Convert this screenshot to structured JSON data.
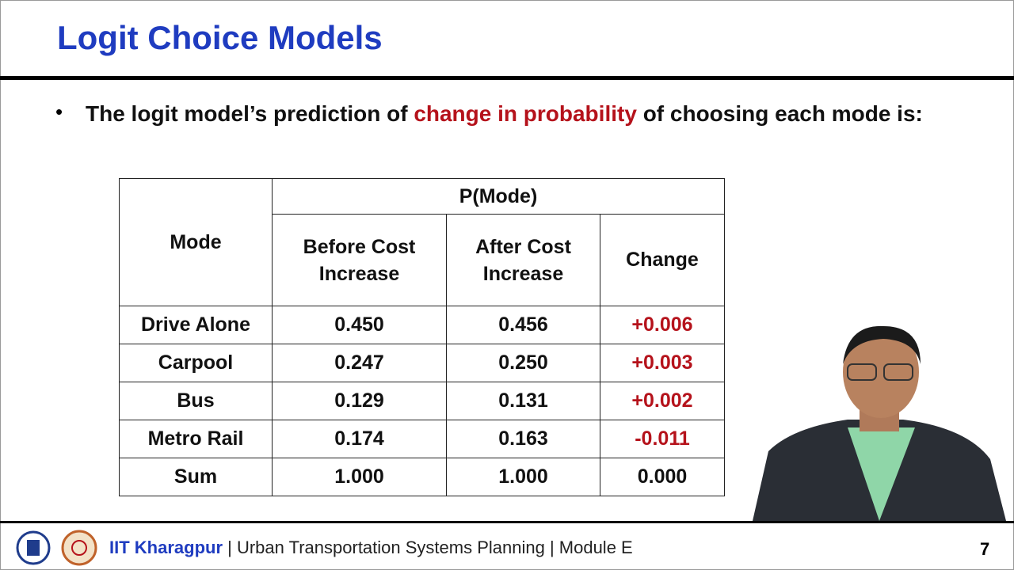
{
  "header": {
    "title": "Logit Choice Models"
  },
  "bullet": {
    "before": "The logit model’s prediction of",
    "highlight": "change in probability",
    "after": "of choosing each mode is:"
  },
  "table": {
    "mode_header": "Mode",
    "group_header": "P(Mode)",
    "columns": [
      "Before Cost Increase",
      "After Cost Increase",
      "Change"
    ],
    "rows": [
      [
        "Drive Alone",
        "0.450",
        "0.456",
        "+0.006"
      ],
      [
        "Carpool",
        "0.247",
        "0.250",
        "+0.003"
      ],
      [
        "Bus",
        "0.129",
        "0.131",
        "+0.002"
      ],
      [
        "Metro Rail",
        "0.174",
        "0.163",
        "-0.011"
      ],
      [
        "Sum",
        "1.000",
        "1.000",
        "0.000"
      ]
    ]
  },
  "footer": {
    "institute": "IIT Kharagpur",
    "course": "| Urban Transportation Systems Planning | Module E",
    "page": "7"
  }
}
